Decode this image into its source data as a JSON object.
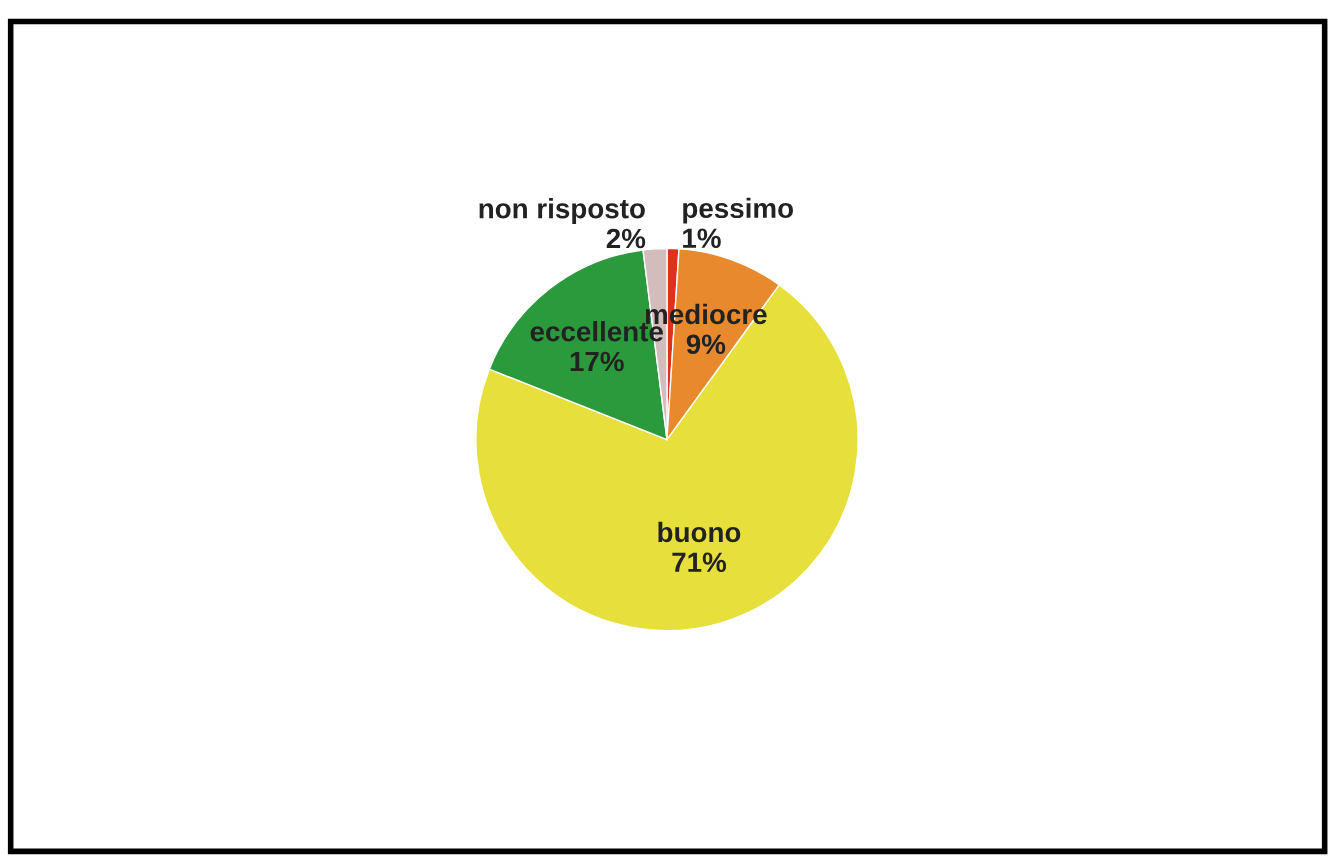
{
  "chart_data": {
    "type": "pie",
    "categories": [
      "pessimo",
      "mediocre",
      "buono",
      "eccellente",
      "non risposto"
    ],
    "values": [
      1,
      9,
      71,
      17,
      2
    ],
    "value_labels": [
      "1%",
      "9%",
      "71%",
      "17%",
      "2%"
    ],
    "colors": [
      "#e0301e",
      "#e8892e",
      "#e6df3c",
      "#2a9a3c",
      "#d2bcbc"
    ],
    "legend": false
  }
}
